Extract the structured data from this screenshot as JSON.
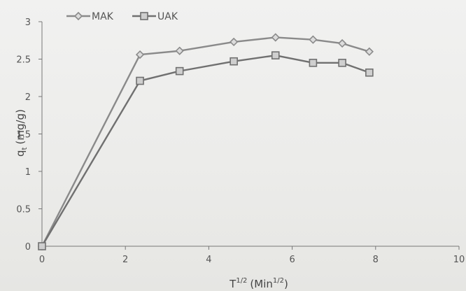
{
  "chart_data": {
    "type": "line",
    "title": "",
    "xlabel_base": "T",
    "xlabel_sup": "1/2",
    "xlabel_unit": "(Min",
    "xlabel_unit_sup": "1/2",
    "xlabel_close": ")",
    "ylabel": "qt (mg/g)",
    "ylabel_main": "q",
    "ylabel_sub": "t",
    "ylabel_unit": "(mg/g)",
    "xlim": [
      0,
      10
    ],
    "ylim": [
      0,
      3
    ],
    "xticks": [
      "0",
      "2",
      "4",
      "6",
      "8",
      "10"
    ],
    "yticks": [
      "0",
      "0.5",
      "1",
      "1.5",
      "2",
      "2.5",
      "3"
    ],
    "grid": false,
    "legend_position": "top-left",
    "series": [
      {
        "name": "MAK",
        "marker": "diamond",
        "color": "#8a8a8a",
        "x": [
          0,
          2.35,
          3.3,
          4.6,
          5.6,
          6.5,
          7.2,
          7.85
        ],
        "y": [
          0,
          2.56,
          2.61,
          2.73,
          2.79,
          2.76,
          2.71,
          2.6
        ]
      },
      {
        "name": "UAK",
        "marker": "square",
        "color": "#707070",
        "x": [
          0,
          2.35,
          3.3,
          4.6,
          5.6,
          6.5,
          7.2,
          7.85
        ],
        "y": [
          0,
          2.21,
          2.34,
          2.47,
          2.55,
          2.45,
          2.45,
          2.32
        ]
      }
    ]
  }
}
